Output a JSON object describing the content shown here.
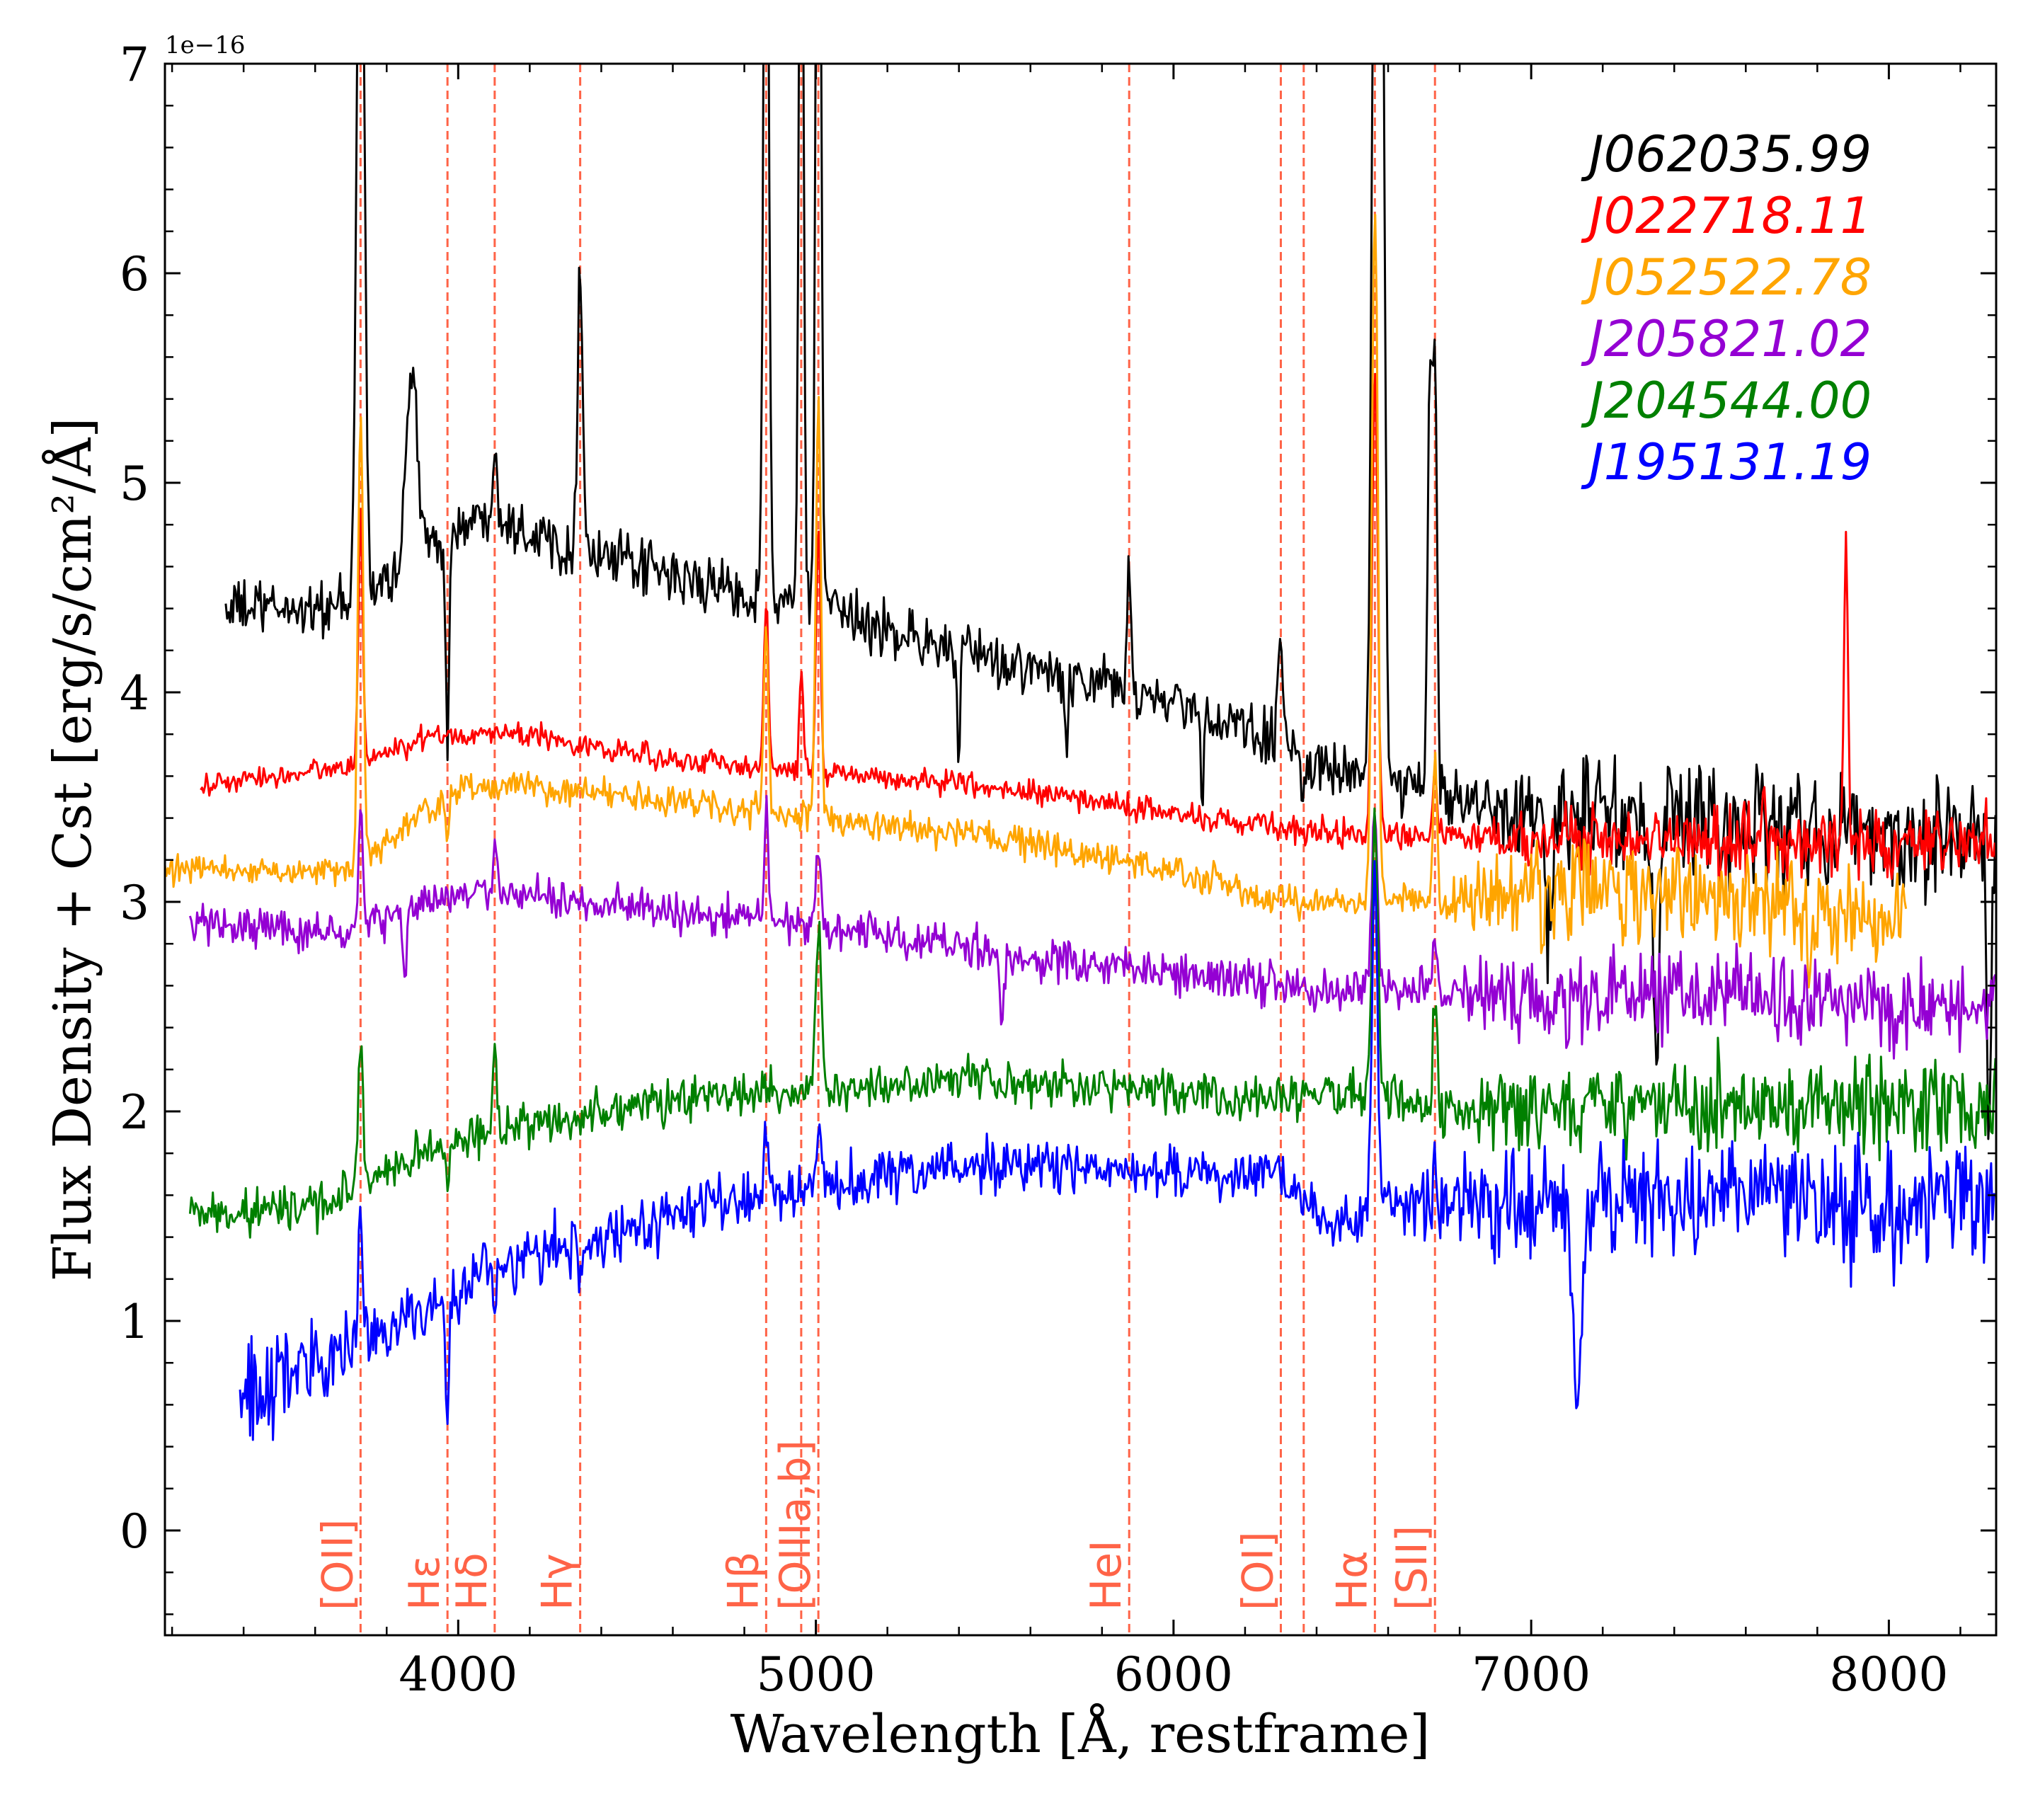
{
  "chart_data": {
    "type": "line",
    "xlabel": "Wavelength [Å, restframe]",
    "ylabel": "Flux Density + Cst [erg/s/cm²/Å]",
    "offset_text": "1e−16",
    "xlim": [
      3180,
      8300
    ],
    "ylim": [
      -0.5,
      7.0
    ],
    "x_ticks": [
      4000,
      5000,
      6000,
      7000,
      8000
    ],
    "x_tick_labels": [
      "4000",
      "5000",
      "6000",
      "7000",
      "8000"
    ],
    "y_ticks": [
      0,
      1,
      2,
      3,
      4,
      5,
      6,
      7
    ],
    "y_tick_labels": [
      "0",
      "1",
      "2",
      "3",
      "4",
      "5",
      "6",
      "7"
    ],
    "legend_position": "top-right",
    "line_color": "#ff6347",
    "emission_lines": [
      {
        "label": "[OII]",
        "wavelength": 3727
      },
      {
        "label": "Hε",
        "wavelength": 3970
      },
      {
        "label": "Hδ",
        "wavelength": 4102
      },
      {
        "label": "Hγ",
        "wavelength": 4341
      },
      {
        "label": "Hβ",
        "wavelength": 4861
      },
      {
        "label": "",
        "wavelength": 4959
      },
      {
        "label": "[OIIIa,b]",
        "wavelength": 5007
      },
      {
        "label": "HeI",
        "wavelength": 5876
      },
      {
        "label": "[OI]",
        "wavelength": 6300
      },
      {
        "label": "",
        "wavelength": 6364
      },
      {
        "label": "Hα",
        "wavelength": 6563
      },
      {
        "label": "[SII]",
        "wavelength": 6731
      }
    ],
    "series": [
      {
        "name": "J062035.99",
        "color": "#000000",
        "x_range": [
          3350,
          8300
        ],
        "continuum": [
          [
            3350,
            4.4
          ],
          [
            3700,
            4.4
          ],
          [
            3950,
            4.75
          ],
          [
            4100,
            4.85
          ],
          [
            4300,
            4.7
          ],
          [
            4600,
            4.55
          ],
          [
            5000,
            4.4
          ],
          [
            5500,
            4.15
          ],
          [
            6000,
            3.95
          ],
          [
            6300,
            3.75
          ],
          [
            6500,
            3.6
          ],
          [
            6800,
            3.5
          ],
          [
            7200,
            3.4
          ],
          [
            8300,
            3.3
          ]
        ],
        "noise": [
          [
            3350,
            0.1
          ],
          [
            6800,
            0.1
          ],
          [
            7000,
            0.22
          ],
          [
            8300,
            0.22
          ]
        ],
        "peaks": [
          [
            3727,
            4.2,
            10
          ],
          [
            3870,
            0.9,
            15
          ],
          [
            4102,
            0.4,
            6
          ],
          [
            4341,
            1.4,
            7
          ],
          [
            4861,
            4.5,
            7
          ],
          [
            4959,
            4.6,
            6
          ],
          [
            5007,
            5.0,
            7
          ],
          [
            5876,
            0.6,
            6
          ],
          [
            6300,
            0.55,
            7
          ],
          [
            6563,
            4.6,
            9
          ],
          [
            6584,
            4.0,
            7
          ],
          [
            6717,
            2.0,
            6
          ],
          [
            6731,
            2.0,
            6
          ]
        ],
        "dips": [
          [
            3970,
            1.0,
            5
          ],
          [
            5400,
            0.6,
            4
          ],
          [
            5700,
            0.4,
            4
          ],
          [
            6080,
            0.5,
            4
          ],
          [
            6360,
            0.25,
            5
          ],
          [
            7050,
            0.6,
            10
          ],
          [
            7350,
            1.2,
            8
          ],
          [
            8280,
            1.4,
            6
          ]
        ]
      },
      {
        "name": "J022718.11",
        "color": "#ff0000",
        "x_range": [
          3280,
          8300
        ],
        "continuum": [
          [
            3280,
            3.55
          ],
          [
            3700,
            3.65
          ],
          [
            3950,
            3.8
          ],
          [
            4200,
            3.8
          ],
          [
            4500,
            3.7
          ],
          [
            5000,
            3.62
          ],
          [
            5500,
            3.55
          ],
          [
            6000,
            3.42
          ],
          [
            6500,
            3.32
          ],
          [
            7000,
            3.3
          ],
          [
            7500,
            3.28
          ],
          [
            8300,
            3.28
          ]
        ],
        "noise": [
          [
            3280,
            0.04
          ],
          [
            6800,
            0.05
          ],
          [
            7100,
            0.12
          ],
          [
            8300,
            0.12
          ]
        ],
        "peaks": [
          [
            3727,
            1.2,
            6
          ],
          [
            4861,
            0.8,
            6
          ],
          [
            4959,
            0.5,
            5
          ],
          [
            5007,
            1.2,
            6
          ],
          [
            6563,
            2.2,
            8
          ],
          [
            6731,
            0.3,
            6
          ],
          [
            7650,
            0.3,
            4
          ],
          [
            7880,
            1.6,
            5
          ]
        ],
        "dips": []
      },
      {
        "name": "J052522.78",
        "color": "#ffa500",
        "x_range": [
          3180,
          8050
        ],
        "continuum": [
          [
            3180,
            3.15
          ],
          [
            3700,
            3.15
          ],
          [
            4000,
            3.55
          ],
          [
            4200,
            3.55
          ],
          [
            4500,
            3.5
          ],
          [
            5000,
            3.4
          ],
          [
            5500,
            3.3
          ],
          [
            6000,
            3.15
          ],
          [
            6300,
            3.0
          ],
          [
            6700,
            3.0
          ],
          [
            7200,
            3.05
          ],
          [
            7700,
            3.0
          ],
          [
            8050,
            2.9
          ]
        ],
        "noise": [
          [
            3180,
            0.05
          ],
          [
            6700,
            0.06
          ],
          [
            7000,
            0.18
          ],
          [
            8050,
            0.18
          ]
        ],
        "peaks": [
          [
            3727,
            2.2,
            7
          ],
          [
            4861,
            0.9,
            6
          ],
          [
            5007,
            2.0,
            7
          ],
          [
            6563,
            3.4,
            8
          ],
          [
            6731,
            0.7,
            6
          ]
        ],
        "dips": [
          [
            3970,
            0.3,
            4
          ],
          [
            7780,
            0.3,
            8
          ]
        ]
      },
      {
        "name": "J205821.02",
        "color": "#9400d3",
        "x_range": [
          3250,
          8300
        ],
        "continuum": [
          [
            3250,
            2.9
          ],
          [
            3700,
            2.85
          ],
          [
            4000,
            3.05
          ],
          [
            4300,
            3.0
          ],
          [
            4600,
            2.95
          ],
          [
            5000,
            2.9
          ],
          [
            5500,
            2.75
          ],
          [
            6000,
            2.65
          ],
          [
            6400,
            2.6
          ],
          [
            6800,
            2.55
          ],
          [
            7500,
            2.55
          ],
          [
            8300,
            2.5
          ]
        ],
        "noise": [
          [
            3250,
            0.07
          ],
          [
            6700,
            0.08
          ],
          [
            7000,
            0.16
          ],
          [
            8300,
            0.16
          ]
        ],
        "peaks": [
          [
            3727,
            0.6,
            6
          ],
          [
            4102,
            0.3,
            5
          ],
          [
            4861,
            0.6,
            5
          ],
          [
            5007,
            0.4,
            6
          ],
          [
            6563,
            0.9,
            8
          ],
          [
            6731,
            0.3,
            6
          ]
        ],
        "dips": [
          [
            3850,
            0.3,
            5
          ],
          [
            5520,
            0.3,
            5
          ]
        ]
      },
      {
        "name": "J204544.00",
        "color": "#008000",
        "x_range": [
          3250,
          8300
        ],
        "continuum": [
          [
            3250,
            1.5
          ],
          [
            3600,
            1.55
          ],
          [
            3900,
            1.8
          ],
          [
            4200,
            1.95
          ],
          [
            4600,
            2.05
          ],
          [
            5000,
            2.1
          ],
          [
            5500,
            2.15
          ],
          [
            6000,
            2.1
          ],
          [
            6300,
            2.05
          ],
          [
            6550,
            2.1
          ],
          [
            6700,
            2.0
          ],
          [
            7000,
            2.0
          ],
          [
            8300,
            2.05
          ]
        ],
        "noise": [
          [
            3250,
            0.08
          ],
          [
            6800,
            0.08
          ],
          [
            7000,
            0.18
          ],
          [
            8300,
            0.18
          ]
        ],
        "peaks": [
          [
            3727,
            0.7,
            6
          ],
          [
            4102,
            0.4,
            5
          ],
          [
            5007,
            0.8,
            8
          ],
          [
            6563,
            1.3,
            8
          ],
          [
            6731,
            0.5,
            6
          ]
        ],
        "dips": [
          [
            3970,
            0.2,
            4
          ]
        ]
      },
      {
        "name": "J195131.19",
        "color": "#0000ff",
        "x_range": [
          3390,
          8300
        ],
        "continuum": [
          [
            3390,
            0.65
          ],
          [
            3550,
            0.75
          ],
          [
            3700,
            0.85
          ],
          [
            3900,
            1.05
          ],
          [
            4100,
            1.25
          ],
          [
            4400,
            1.4
          ],
          [
            4700,
            1.55
          ],
          [
            5000,
            1.65
          ],
          [
            5500,
            1.75
          ],
          [
            6000,
            1.7
          ],
          [
            6300,
            1.7
          ],
          [
            6450,
            1.45
          ],
          [
            6600,
            1.55
          ],
          [
            7000,
            1.55
          ],
          [
            7400,
            1.6
          ],
          [
            8300,
            1.55
          ]
        ],
        "noise": [
          [
            3390,
            0.22
          ],
          [
            3700,
            0.12
          ],
          [
            6500,
            0.08
          ],
          [
            6900,
            0.2
          ],
          [
            8300,
            0.25
          ]
        ],
        "peaks": [
          [
            3727,
            0.7,
            6
          ],
          [
            4861,
            0.3,
            6
          ],
          [
            5007,
            0.3,
            6
          ],
          [
            6563,
            1.6,
            8
          ],
          [
            6731,
            0.2,
            5
          ]
        ],
        "dips": [
          [
            3970,
            0.7,
            4
          ],
          [
            4102,
            0.2,
            4
          ],
          [
            4341,
            0.25,
            4
          ],
          [
            7130,
            0.9,
            12
          ]
        ]
      }
    ]
  }
}
